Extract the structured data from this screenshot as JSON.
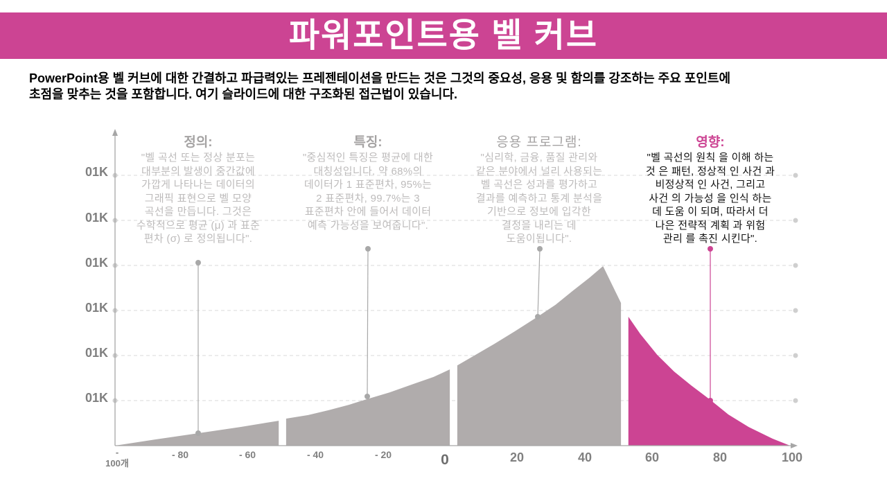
{
  "title": "파워포인트용 벨 커브",
  "intro": {
    "lines": [
      "PowerPoint용 벨 커브에 대한 간결하고 파급력있는 프레젠테이션을 만드는 것은 그것의 중요성, 응용 및 함의를 강조하는 주요 포인트에",
      "초점을 맞추는 것을 포함합니다. 여기 슬라이드에 대한 구조화된 접근법이 있습니다."
    ]
  },
  "colors": {
    "accent": "#CC4493",
    "area": "#B0ACAC",
    "muted_text": "#BDBBBB",
    "heading_gray": "#A5A3A3",
    "axis": "#A6A6A6"
  },
  "chart_data": {
    "type": "area",
    "xlim": [
      -100,
      100
    ],
    "x_ticks": [
      "- 100개",
      "- 80",
      "- 60",
      "- 40",
      "- 20",
      "0",
      "20",
      "40",
      "60",
      "80",
      "100"
    ],
    "y_ticks": [
      "01K",
      "01K",
      "01K",
      "01K",
      "01K",
      "01K"
    ],
    "grid": true,
    "series": [
      {
        "color": "#B0ACAC",
        "values": [
          [
            -100,
            0
          ],
          [
            -88,
            0.023
          ],
          [
            -75.5,
            0.046
          ],
          [
            -63,
            0.069
          ],
          [
            -51.7,
            0.092
          ]
        ]
      },
      {
        "color": "#B0ACAC",
        "values": [
          [
            -49.5,
            0.1
          ],
          [
            -43,
            0.113
          ],
          [
            -37,
            0.131
          ],
          [
            -31,
            0.151
          ],
          [
            -25.6,
            0.172
          ],
          [
            -19,
            0.197
          ],
          [
            -12,
            0.228
          ],
          [
            -6,
            0.254
          ],
          [
            -1.2,
            0.282
          ]
        ]
      },
      {
        "color": "#B0ACAC",
        "values": [
          [
            1,
            0.297
          ],
          [
            6,
            0.333
          ],
          [
            12,
            0.377
          ],
          [
            18,
            0.423
          ],
          [
            24.7,
            0.477
          ],
          [
            30,
            0.521
          ],
          [
            35,
            0.572
          ],
          [
            40,
            0.621
          ],
          [
            44,
            0.664
          ],
          [
            49.3,
            0.528
          ]
        ]
      },
      {
        "color": "#CC4493",
        "values": [
          [
            51.5,
            0.477
          ],
          [
            55,
            0.413
          ],
          [
            60,
            0.336
          ],
          [
            65,
            0.274
          ],
          [
            70,
            0.223
          ],
          [
            75.7,
            0.169
          ],
          [
            81,
            0.115
          ],
          [
            87,
            0.069
          ],
          [
            94,
            0.026
          ],
          [
            99.2,
            0
          ]
        ]
      }
    ],
    "annotations": [
      {
        "heading": "정의:",
        "lines": [
          "\"벨 곡선 또는 정상 분포는",
          "대부분의 발생이 중간값에",
          "가깝게 나타나는 데이터의",
          "그래픽 표현으로 벨 모양",
          "곡선을 만듭니다. 그것은",
          "수학적으로 평균 (μ) 과 표준",
          "편차 (σ) 로 정의됩니다\"."
        ]
      },
      {
        "heading": "특징:",
        "lines": [
          "\"중심적인 특징은 평균에 대한",
          "대칭성입니다. 약 68%의",
          "데이터가 1 표준편차, 95%는",
          "2 표준편차, 99.7%는 3",
          "표준편차 안에 들어서 데이터",
          "예측 가능성을 보여줍니다\"."
        ]
      },
      {
        "heading": "응용 프로그램:",
        "lines": [
          "\"심리학, 금융, 품질 관리와",
          "같은 분야에서 널리 사용되는",
          "벨 곡선은 성과를 평가하고",
          "결과를 예측하고 통계 분석을",
          "기반으로 정보에 입각한",
          "결정을 내리는 데",
          "도움이됩니다\"."
        ]
      },
      {
        "heading": "영향:",
        "lines": [
          "\"벨 곡선의 원칙 을 이해 하는",
          "것 은 패턴, 정상적 인 사건 과",
          "비정상적 인 사건, 그리고",
          "사건 의 가능성 을 인식 하는",
          "데 도움 이 되며, 따라서 더",
          "나은 전략적 계획 과 위험",
          "관리 를 촉진 시킨다\"."
        ]
      }
    ]
  }
}
